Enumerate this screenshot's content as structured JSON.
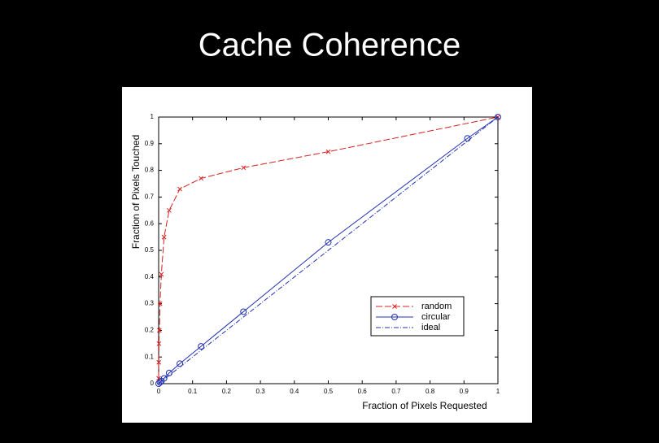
{
  "title": "Cache Coherence",
  "chart_data": {
    "type": "line",
    "xlabel": "Fraction of Pixels Requested",
    "ylabel": "Fraction of Pixels Touched",
    "xlim": [
      0,
      1
    ],
    "ylim": [
      0,
      1
    ],
    "xticks": [
      0,
      0.1,
      0.2,
      0.3,
      0.4,
      0.5,
      0.6,
      0.7,
      0.8,
      0.9,
      1
    ],
    "yticks": [
      0,
      0.1,
      0.2,
      0.3,
      0.4,
      0.5,
      0.6,
      0.7,
      0.8,
      0.9,
      1
    ],
    "legend": "lower right",
    "series": [
      {
        "name": "random",
        "color": "#d62020",
        "marker": "x",
        "dash": "dashed",
        "x": [
          0,
          0.0005,
          0.001,
          0.002,
          0.004,
          0.008,
          0.016,
          0.031,
          0.0625,
          0.125,
          0.25,
          0.5,
          1
        ],
        "values": [
          0.02,
          0.08,
          0.15,
          0.2,
          0.3,
          0.41,
          0.55,
          0.65,
          0.73,
          0.77,
          0.81,
          0.87,
          1
        ]
      },
      {
        "name": "circular",
        "color": "#2030b0",
        "marker": "o",
        "dash": "solid",
        "x": [
          0,
          0.004,
          0.008,
          0.016,
          0.031,
          0.0625,
          0.125,
          0.25,
          0.5,
          0.91,
          1
        ],
        "values": [
          0,
          0.005,
          0.01,
          0.02,
          0.04,
          0.075,
          0.14,
          0.27,
          0.53,
          0.92,
          1
        ]
      },
      {
        "name": "ideal",
        "color": "#2030b0",
        "marker": "none",
        "dash": "dashdot",
        "x": [
          0,
          1
        ],
        "values": [
          0,
          1
        ]
      }
    ]
  }
}
